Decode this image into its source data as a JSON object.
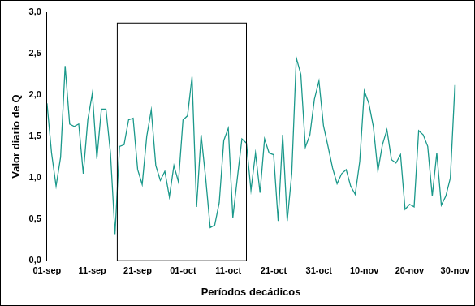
{
  "chart_data": {
    "type": "line",
    "x_label": "Períodos decádicos",
    "y_label": "Valor diario de Q",
    "categories": [
      "01-sep",
      null,
      null,
      null,
      null,
      null,
      null,
      null,
      null,
      null,
      "11-sep",
      null,
      null,
      null,
      null,
      null,
      null,
      null,
      null,
      null,
      "21-sep",
      null,
      null,
      null,
      null,
      null,
      null,
      null,
      null,
      null,
      "01-oct",
      null,
      null,
      null,
      null,
      null,
      null,
      null,
      null,
      null,
      "11-oct",
      null,
      null,
      null,
      null,
      null,
      null,
      null,
      null,
      null,
      "21-oct",
      null,
      null,
      null,
      null,
      null,
      null,
      null,
      null,
      null,
      "31-oct",
      null,
      null,
      null,
      null,
      null,
      null,
      null,
      null,
      null,
      "10-nov",
      null,
      null,
      null,
      null,
      null,
      null,
      null,
      null,
      null,
      "20-nov",
      null,
      null,
      null,
      null,
      null,
      null,
      null,
      null,
      null,
      "30-nov"
    ],
    "values": [
      1.9,
      1.3,
      0.9,
      1.25,
      2.35,
      1.65,
      1.62,
      1.65,
      1.05,
      1.7,
      2.02,
      1.23,
      1.83,
      1.83,
      1.3,
      0.32,
      1.38,
      1.4,
      1.7,
      1.72,
      1.1,
      0.92,
      1.5,
      1.82,
      1.15,
      0.97,
      1.08,
      0.77,
      1.15,
      0.95,
      1.7,
      1.75,
      2.22,
      0.65,
      1.52,
      1.0,
      0.4,
      0.43,
      0.7,
      1.45,
      1.6,
      0.52,
      1.0,
      1.47,
      1.42,
      0.85,
      1.3,
      0.82,
      1.47,
      1.3,
      1.28,
      0.48,
      1.52,
      0.48,
      1.05,
      2.45,
      2.25,
      1.37,
      1.52,
      1.95,
      2.17,
      1.63,
      1.38,
      1.12,
      0.93,
      1.05,
      1.1,
      0.9,
      0.8,
      1.2,
      2.05,
      1.9,
      1.62,
      1.08,
      1.4,
      1.58,
      1.22,
      1.18,
      1.28,
      0.62,
      0.68,
      0.65,
      1.57,
      1.52,
      1.38,
      0.78,
      1.3,
      0.67,
      0.78,
      1.0,
      2.12
    ],
    "color": "#1b998b",
    "ylim": [
      0,
      3
    ],
    "yticks": [
      {
        "value": 0,
        "label": "0,0"
      },
      {
        "value": 0.5,
        "label": "0,5"
      },
      {
        "value": 1,
        "label": "1,0"
      },
      {
        "value": 1.5,
        "label": "1,5"
      },
      {
        "value": 2,
        "label": "2,0"
      },
      {
        "value": 2.5,
        "label": "2,5"
      },
      {
        "value": 3,
        "label": "3,0"
      }
    ],
    "box": {
      "x": [
        15.5,
        44
      ],
      "y": [
        0,
        2.87
      ]
    },
    "grid": false,
    "legend": false
  }
}
